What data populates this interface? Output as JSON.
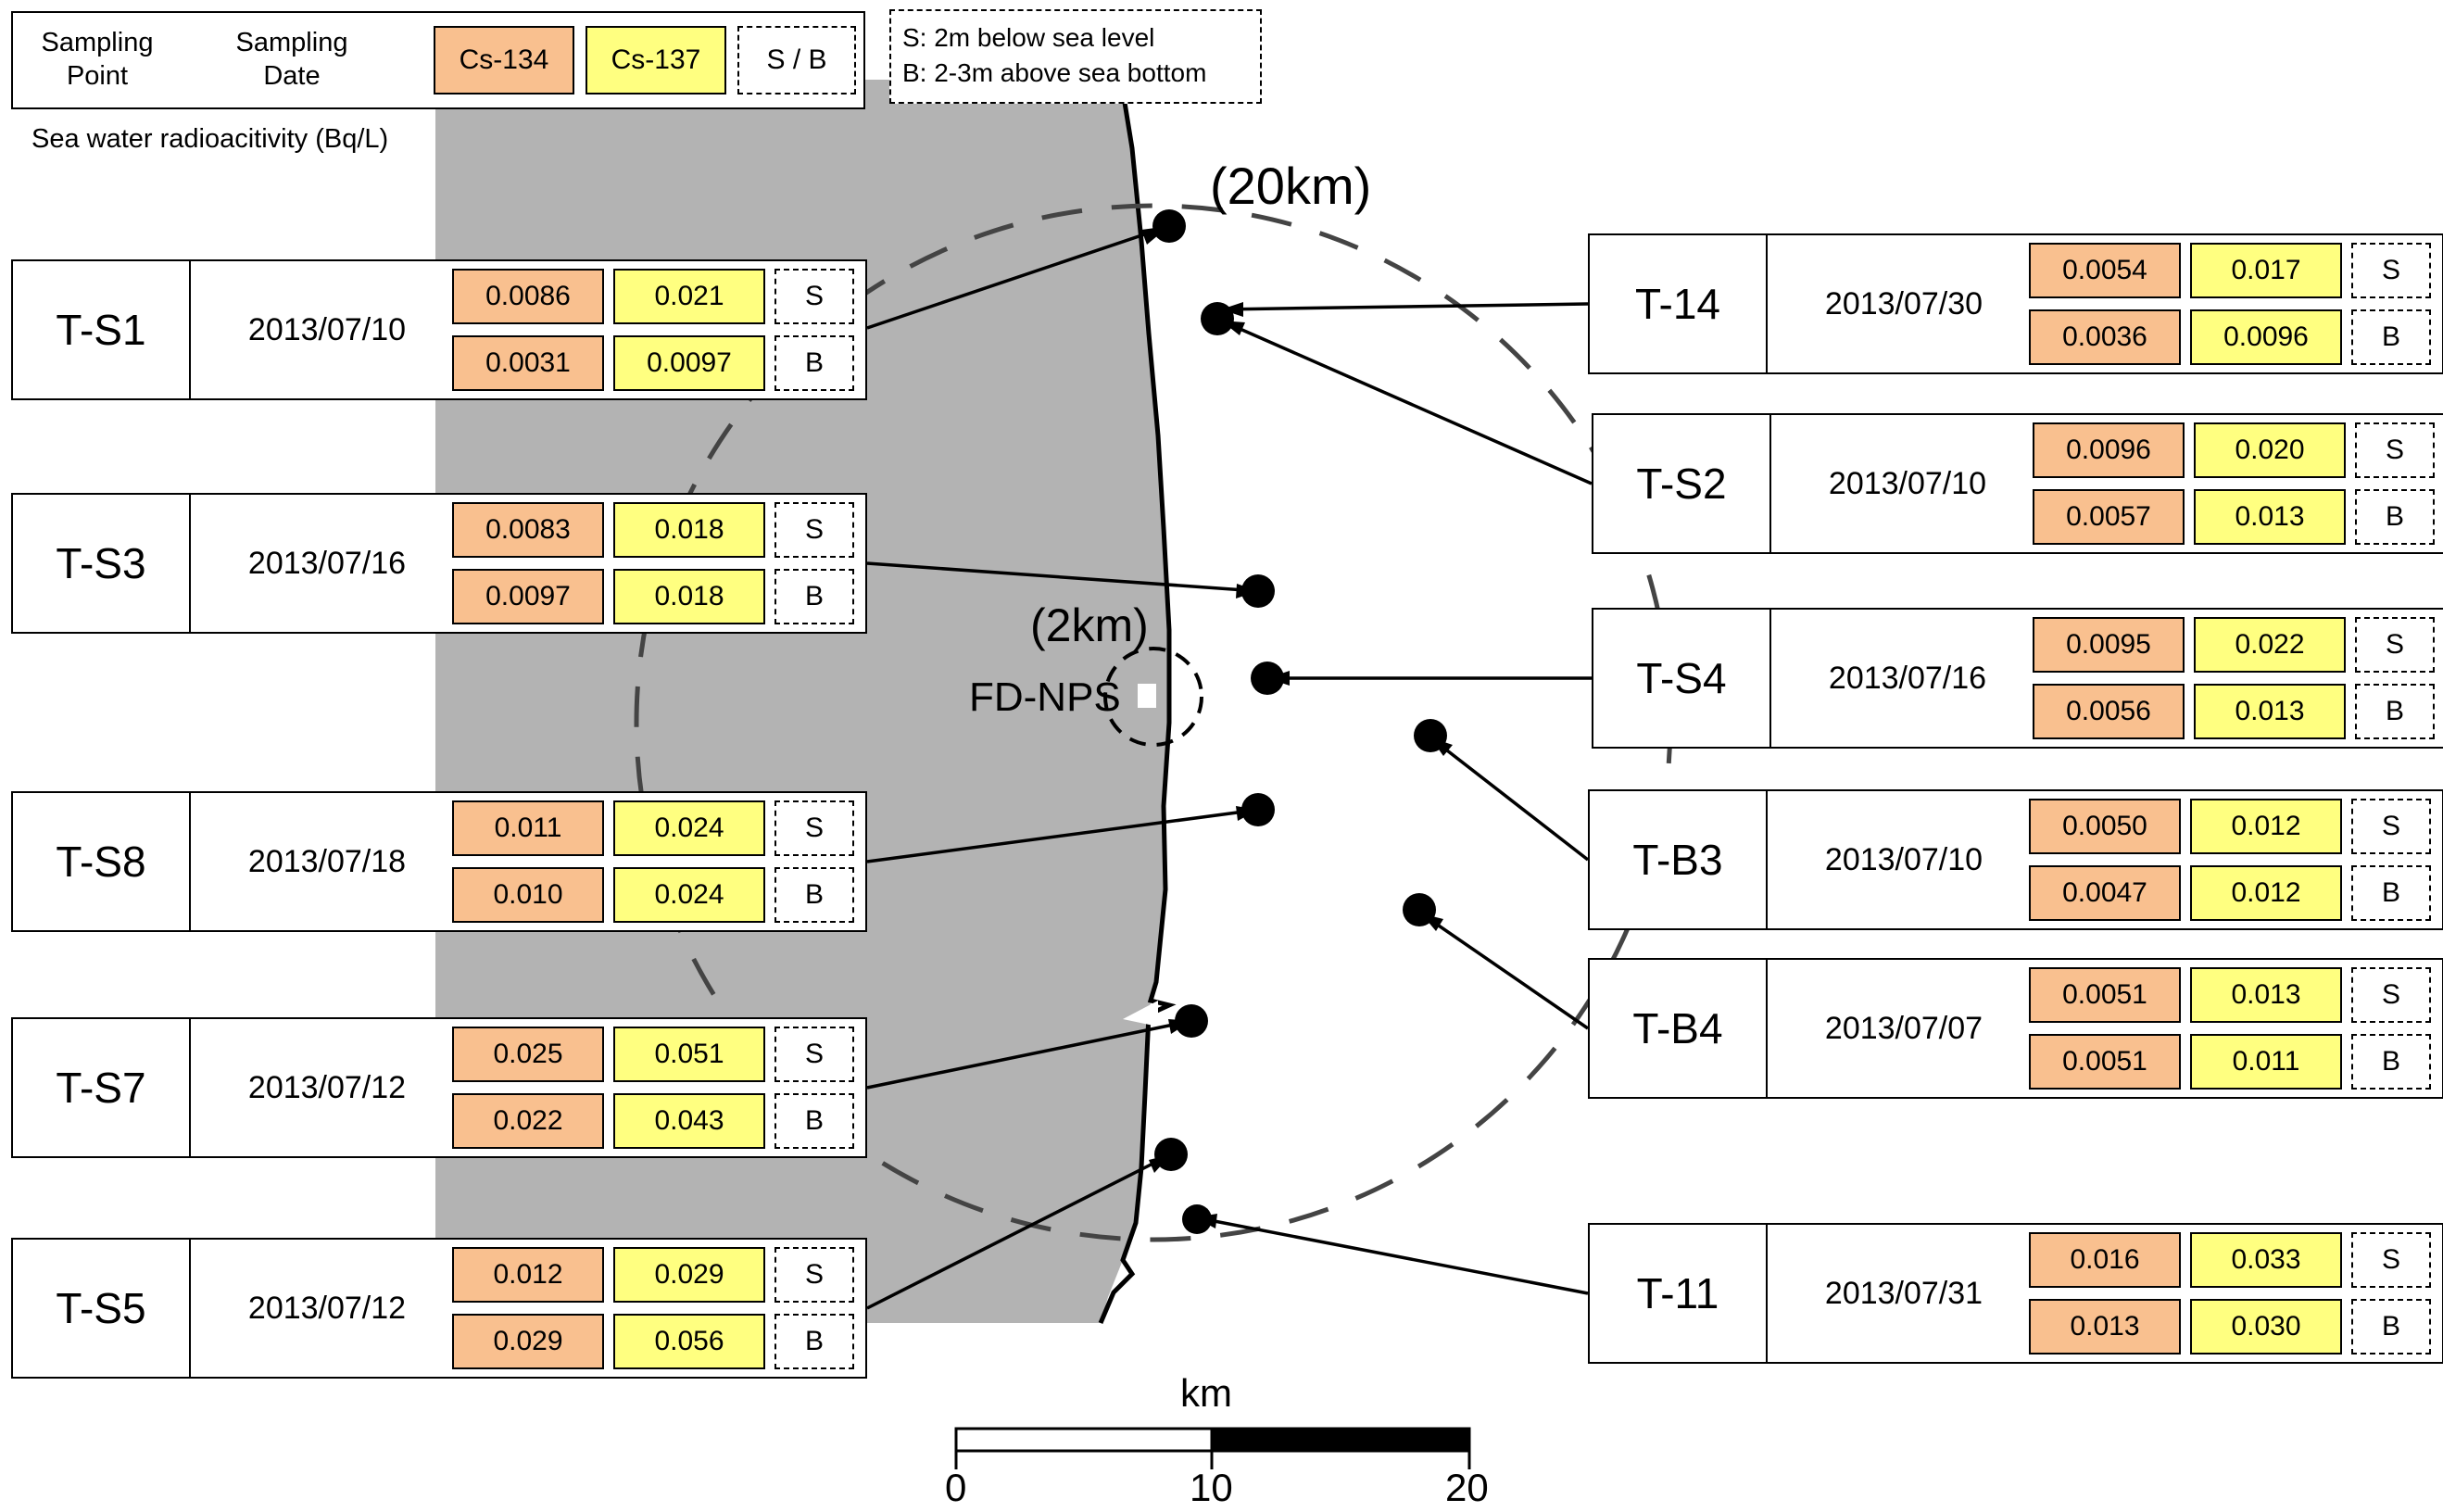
{
  "legend": {
    "col1": [
      "Sampling",
      "Point"
    ],
    "col2": [
      "Sampling",
      "Date"
    ],
    "cs134": "Cs-134",
    "cs137": "Cs-137",
    "sb": "S / B"
  },
  "note": {
    "line1": "S: 2m below sea level",
    "line2": "B: 2-3m above sea bottom"
  },
  "unit_label": "Sea water radioacitivity (Bq/L)",
  "labels": {
    "circle20": "(20km)",
    "circle2": "(2km)",
    "plant": "FD-NPS"
  },
  "scale": {
    "unit": "km",
    "ticks": [
      "0",
      "10",
      "20"
    ]
  },
  "colors": {
    "cs134": "#f9c08f",
    "cs137": "#ffff80",
    "land": "#b3b3b3"
  },
  "stations": [
    {
      "id": "T-S1",
      "date": "2013/07/10",
      "s": [
        "0.0086",
        "0.021"
      ],
      "b": [
        "0.0031",
        "0.0097"
      ],
      "s_tag": "S",
      "b_tag": "B"
    },
    {
      "id": "T-S3",
      "date": "2013/07/16",
      "s": [
        "0.0083",
        "0.018"
      ],
      "b": [
        "0.0097",
        "0.018"
      ],
      "s_tag": "S",
      "b_tag": "B"
    },
    {
      "id": "T-S8",
      "date": "2013/07/18",
      "s": [
        "0.011",
        "0.024"
      ],
      "b": [
        "0.010",
        "0.024"
      ],
      "s_tag": "S",
      "b_tag": "B"
    },
    {
      "id": "T-S7",
      "date": "2013/07/12",
      "s": [
        "0.025",
        "0.051"
      ],
      "b": [
        "0.022",
        "0.043"
      ],
      "s_tag": "S",
      "b_tag": "B"
    },
    {
      "id": "T-S5",
      "date": "2013/07/12",
      "s": [
        "0.012",
        "0.029"
      ],
      "b": [
        "0.029",
        "0.056"
      ],
      "s_tag": "S",
      "b_tag": "B"
    },
    {
      "id": "T-14",
      "date": "2013/07/30",
      "s": [
        "0.0054",
        "0.017"
      ],
      "b": [
        "0.0036",
        "0.0096"
      ],
      "s_tag": "S",
      "b_tag": "B"
    },
    {
      "id": "T-S2",
      "date": "2013/07/10",
      "s": [
        "0.0096",
        "0.020"
      ],
      "b": [
        "0.0057",
        "0.013"
      ],
      "s_tag": "S",
      "b_tag": "B"
    },
    {
      "id": "T-S4",
      "date": "2013/07/16",
      "s": [
        "0.0095",
        "0.022"
      ],
      "b": [
        "0.0056",
        "0.013"
      ],
      "s_tag": "S",
      "b_tag": "B"
    },
    {
      "id": "T-B3",
      "date": "2013/07/10",
      "s": [
        "0.0050",
        "0.012"
      ],
      "b": [
        "0.0047",
        "0.012"
      ],
      "s_tag": "S",
      "b_tag": "B"
    },
    {
      "id": "T-B4",
      "date": "2013/07/07",
      "s": [
        "0.0051",
        "0.013"
      ],
      "b": [
        "0.0051",
        "0.011"
      ],
      "s_tag": "S",
      "b_tag": "B"
    },
    {
      "id": "T-11",
      "date": "2013/07/31",
      "s": [
        "0.016",
        "0.033"
      ],
      "b": [
        "0.013",
        "0.030"
      ],
      "s_tag": "S",
      "b_tag": "B"
    }
  ]
}
